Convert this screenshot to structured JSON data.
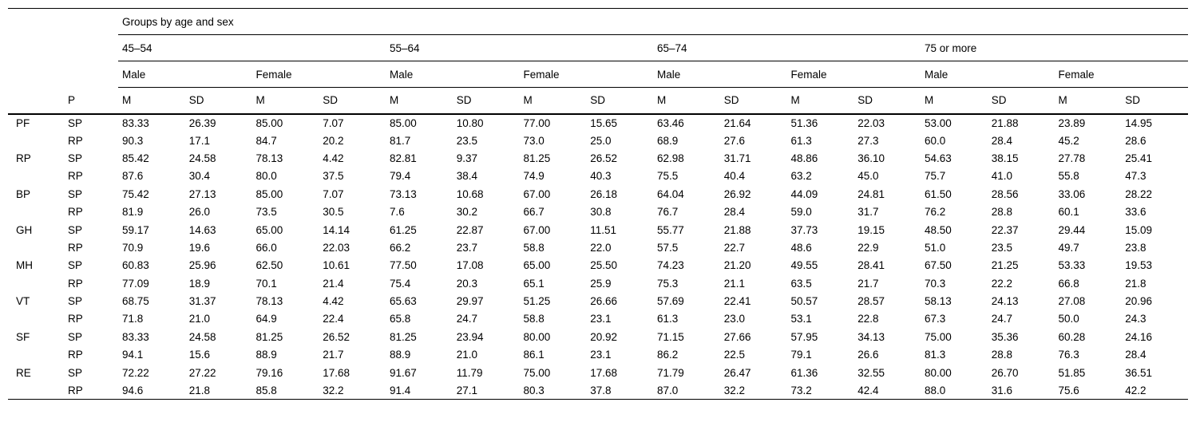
{
  "table": {
    "title": "Groups by age and sex",
    "col_p_header": "P",
    "age_groups": [
      "45–54",
      "55–64",
      "65–74",
      "75 or more"
    ],
    "sex_groups": [
      "Male",
      "Female"
    ],
    "stat_headers": [
      "M",
      "SD"
    ],
    "rows": [
      {
        "label": "PF",
        "p": "SP",
        "values": [
          "83.33",
          "26.39",
          "85.00",
          "7.07",
          "85.00",
          "10.80",
          "77.00",
          "15.65",
          "63.46",
          "21.64",
          "51.36",
          "22.03",
          "53.00",
          "21.88",
          "23.89",
          "14.95"
        ]
      },
      {
        "label": "",
        "p": "RP",
        "values": [
          "90.3",
          "17.1",
          "84.7",
          "20.2",
          "81.7",
          "23.5",
          "73.0",
          "25.0",
          "68.9",
          "27.6",
          "61.3",
          "27.3",
          "60.0",
          "28.4",
          "45.2",
          "28.6"
        ]
      },
      {
        "label": "RP",
        "p": "SP",
        "values": [
          "85.42",
          "24.58",
          "78.13",
          "4.42",
          "82.81",
          "9.37",
          "81.25",
          "26.52",
          "62.98",
          "31.71",
          "48.86",
          "36.10",
          "54.63",
          "38.15",
          "27.78",
          "25.41"
        ]
      },
      {
        "label": "",
        "p": "RP",
        "values": [
          "87.6",
          "30.4",
          "80.0",
          "37.5",
          "79.4",
          "38.4",
          "74.9",
          "40.3",
          "75.5",
          "40.4",
          "63.2",
          "45.0",
          "75.7",
          "41.0",
          "55.8",
          "47.3"
        ]
      },
      {
        "label": "BP",
        "p": "SP",
        "values": [
          "75.42",
          "27.13",
          "85.00",
          "7.07",
          "73.13",
          "10.68",
          "67.00",
          "26.18",
          "64.04",
          "26.92",
          "44.09",
          "24.81",
          "61.50",
          "28.56",
          "33.06",
          "28.22"
        ]
      },
      {
        "label": "",
        "p": "RP",
        "values": [
          "81.9",
          "26.0",
          "73.5",
          "30.5",
          "7.6",
          "30.2",
          "66.7",
          "30.8",
          "76.7",
          "28.4",
          "59.0",
          "31.7",
          "76.2",
          "28.8",
          "60.1",
          "33.6"
        ]
      },
      {
        "label": "GH",
        "p": "SP",
        "values": [
          "59.17",
          "14.63",
          "65.00",
          "14.14",
          "61.25",
          "22.87",
          "67.00",
          "11.51",
          "55.77",
          "21.88",
          "37.73",
          "19.15",
          "48.50",
          "22.37",
          "29.44",
          "15.09"
        ]
      },
      {
        "label": "",
        "p": "RP",
        "values": [
          "70.9",
          "19.6",
          "66.0",
          "22.03",
          "66.2",
          "23.7",
          "58.8",
          "22.0",
          "57.5",
          "22.7",
          "48.6",
          "22.9",
          "51.0",
          "23.5",
          "49.7",
          "23.8"
        ]
      },
      {
        "label": "MH",
        "p": "SP",
        "values": [
          "60.83",
          "25.96",
          "62.50",
          "10.61",
          "77.50",
          "17.08",
          "65.00",
          "25.50",
          "74.23",
          "21.20",
          "49.55",
          "28.41",
          "67.50",
          "21.25",
          "53.33",
          "19.53"
        ]
      },
      {
        "label": "",
        "p": "RP",
        "values": [
          "77.09",
          "18.9",
          "70.1",
          "21.4",
          "75.4",
          "20.3",
          "65.1",
          "25.9",
          "75.3",
          "21.1",
          "63.5",
          "21.7",
          "70.3",
          "22.2",
          "66.8",
          "21.8"
        ]
      },
      {
        "label": "VT",
        "p": "SP",
        "values": [
          "68.75",
          "31.37",
          "78.13",
          "4.42",
          "65.63",
          "29.97",
          "51.25",
          "26.66",
          "57.69",
          "22.41",
          "50.57",
          "28.57",
          "58.13",
          "24.13",
          "27.08",
          "20.96"
        ]
      },
      {
        "label": "",
        "p": "RP",
        "values": [
          "71.8",
          "21.0",
          "64.9",
          "22.4",
          "65.8",
          "24.7",
          "58.8",
          "23.1",
          "61.3",
          "23.0",
          "53.1",
          "22.8",
          "67.3",
          "24.7",
          "50.0",
          "24.3"
        ]
      },
      {
        "label": "SF",
        "p": "SP",
        "values": [
          "83.33",
          "24.58",
          "81.25",
          "26.52",
          "81.25",
          "23.94",
          "80.00",
          "20.92",
          "71.15",
          "27.66",
          "57.95",
          "34.13",
          "75.00",
          "35.36",
          "60.28",
          "24.16"
        ]
      },
      {
        "label": "",
        "p": "RP",
        "values": [
          "94.1",
          "15.6",
          "88.9",
          "21.7",
          "88.9",
          "21.0",
          "86.1",
          "23.1",
          "86.2",
          "22.5",
          "79.1",
          "26.6",
          "81.3",
          "28.8",
          "76.3",
          "28.4"
        ]
      },
      {
        "label": "RE",
        "p": "SP",
        "values": [
          "72.22",
          "27.22",
          "79.16",
          "17.68",
          "91.67",
          "11.79",
          "75.00",
          "17.68",
          "71.79",
          "26.47",
          "61.36",
          "32.55",
          "80.00",
          "26.70",
          "51.85",
          "36.51"
        ]
      },
      {
        "label": "",
        "p": "RP",
        "values": [
          "94.6",
          "21.8",
          "85.8",
          "32.2",
          "91.4",
          "27.1",
          "80.3",
          "37.8",
          "87.0",
          "32.2",
          "73.2",
          "42.4",
          "88.0",
          "31.6",
          "75.6",
          "42.2"
        ]
      }
    ]
  }
}
